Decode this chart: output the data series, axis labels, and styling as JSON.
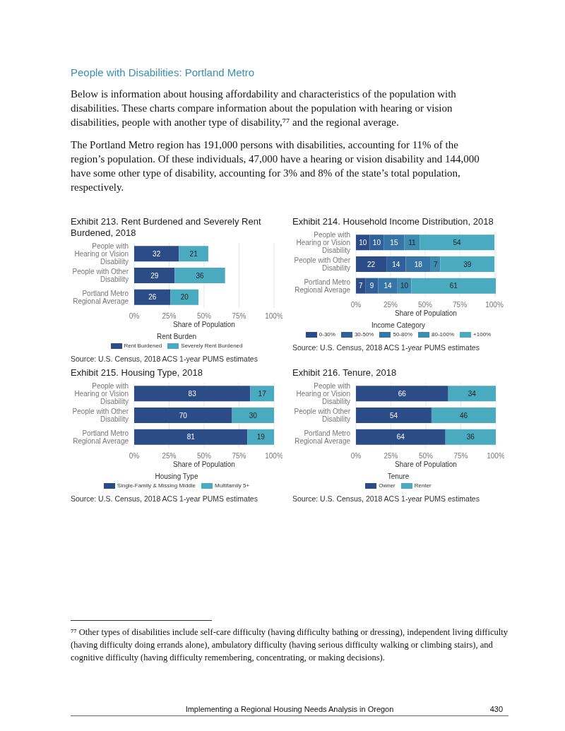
{
  "chart_data": [
    {
      "type": "other",
      "title": "People with Disabilities: Portland Metro",
      "annotations": [
        "Below is information about housing affordability and characteristics of the population with disabilities. These charts compare information about the population with hearing or vision disabilities, people with another type of disability,⁷⁷ and the regional average.",
        "The Portland Metro region has 191,000 persons with disabilities, accounting for 11% of the region’s population. Of these individuals, 47,000 have a hearing or vision disability and 144,000 have some other type of disability, accounting for 3% and 8% of the state’s total population, respectively."
      ]
    },
    {
      "type": "bar",
      "title": "Exhibit 213. Rent Burdened and Severely Rent Burdened, 2018",
      "orientation": "horizontal",
      "stacked": true,
      "categories": [
        "People with Hearing or Vision Disability",
        "People with Other Disability",
        "Portland Metro Regional Average"
      ],
      "series": [
        {
          "name": "Rent Burdened",
          "color": "#2c4c88",
          "values": [
            32,
            29,
            26
          ]
        },
        {
          "name": "Severely Rent Burdened",
          "color": "#4aabc0",
          "values": [
            21,
            36,
            20
          ]
        }
      ],
      "xlim": [
        0,
        100
      ],
      "xticks": [
        {
          "value": 0,
          "label": "0%"
        },
        {
          "value": 25,
          "label": "25%"
        },
        {
          "value": 50,
          "label": "50%"
        },
        {
          "value": 75,
          "label": "75%"
        },
        {
          "value": 100,
          "label": "100%"
        }
      ],
      "xlabel": "Share of Population",
      "legend_title": "Rent Burden",
      "legend": "bottom",
      "grid": "x",
      "data_labels": true,
      "annotations": [
        "Source: U.S. Census, 2018 ACS 1-year PUMS estimates"
      ]
    },
    {
      "type": "bar",
      "title": "Exhibit 214. Household Income Distribution, 2018",
      "orientation": "horizontal",
      "stacked": true,
      "categories": [
        "People with Hearing or Vision Disability",
        "People with Other Disability",
        "Portland Metro Regional Average"
      ],
      "series": [
        {
          "name": "0-30%",
          "color": "#2c4c88",
          "values": [
            10,
            22,
            7
          ]
        },
        {
          "name": "30-50%",
          "color": "#30609a",
          "values": [
            10,
            14,
            9
          ]
        },
        {
          "name": "50-80%",
          "color": "#3775a7",
          "values": [
            15,
            18,
            14
          ]
        },
        {
          "name": "80-100%",
          "color": "#3d8db2",
          "values": [
            11,
            7,
            10
          ]
        },
        {
          "name": "+100%",
          "color": "#4aabc0",
          "values": [
            54,
            39,
            61
          ]
        }
      ],
      "xlim": [
        0,
        101
      ],
      "xticks": [
        {
          "value": 0,
          "label": "0%"
        },
        {
          "value": 25,
          "label": "25%"
        },
        {
          "value": 50,
          "label": "50%"
        },
        {
          "value": 75,
          "label": "75%"
        },
        {
          "value": 100,
          "label": "100%"
        }
      ],
      "xlabel": "Share of Population",
      "legend_title": "Income Category",
      "legend": "bottom",
      "grid": "x",
      "data_labels": true,
      "annotations": [
        "Source: U.S. Census, 2018 ACS 1-year PUMS estimates"
      ]
    },
    {
      "type": "bar",
      "title": "Exhibit 215. Housing Type, 2018",
      "orientation": "horizontal",
      "stacked": true,
      "categories": [
        "People with Hearing or Vision Disability",
        "People with Other Disability",
        "Portland Metro Regional Average"
      ],
      "series": [
        {
          "name": "Single-Family & Missing Middle",
          "color": "#2c4c88",
          "values": [
            83,
            70,
            81
          ]
        },
        {
          "name": "Multifamily 5+",
          "color": "#4aabc0",
          "values": [
            17,
            30,
            19
          ]
        }
      ],
      "xlim": [
        0,
        100
      ],
      "xticks": [
        {
          "value": 0,
          "label": "0%"
        },
        {
          "value": 25,
          "label": "25%"
        },
        {
          "value": 50,
          "label": "50%"
        },
        {
          "value": 75,
          "label": "75%"
        },
        {
          "value": 100,
          "label": "100%"
        }
      ],
      "xlabel": "Share of Population",
      "legend_title": "Housing Type",
      "legend": "bottom",
      "grid": "x",
      "data_labels": true,
      "annotations": [
        "Source: U.S. Census, 2018 ACS 1-year PUMS estimates"
      ]
    },
    {
      "type": "bar",
      "title": "Exhibit 216. Tenure, 2018",
      "orientation": "horizontal",
      "stacked": true,
      "categories": [
        "People with Hearing or Vision Disability",
        "People with Other Disability",
        "Portland Metro Regional Average"
      ],
      "series": [
        {
          "name": "Owner",
          "color": "#2c4c88",
          "values": [
            66,
            54,
            64
          ]
        },
        {
          "name": "Renter",
          "color": "#4aabc0",
          "values": [
            34,
            46,
            36
          ]
        }
      ],
      "xlim": [
        0,
        100
      ],
      "xticks": [
        {
          "value": 0,
          "label": "0%"
        },
        {
          "value": 25,
          "label": "25%"
        },
        {
          "value": 50,
          "label": "50%"
        },
        {
          "value": 75,
          "label": "75%"
        },
        {
          "value": 100,
          "label": "100%"
        }
      ],
      "xlabel": "Share of Population",
      "legend_title": "Tenure",
      "legend": "bottom",
      "grid": "x",
      "data_labels": true,
      "annotations": [
        "Source: U.S. Census, 2018 ACS 1-year PUMS estimates"
      ]
    },
    {
      "type": "other",
      "annotations": [
        "⁷⁷ Other types of disabilities include self-care difficulty (having difficulty bathing or dressing), independent living difficulty (having difficulty doing errands alone), ambulatory difficulty (having serious difficulty walking or climbing stairs), and cognitive difficulty (having difficulty remembering, concentrating, or making decisions).",
        "Implementing a Regional Housing Needs Analysis in Oregon",
        "430"
      ]
    }
  ]
}
